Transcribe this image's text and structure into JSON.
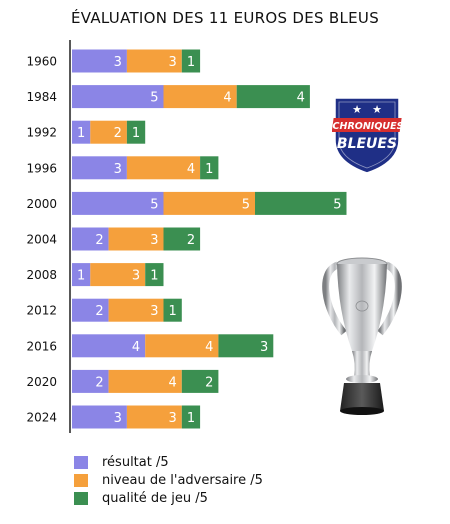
{
  "chart_data": {
    "type": "bar",
    "stacked": true,
    "orientation": "horizontal",
    "title": "ÉVALUATION DES 11 EUROS DES BLEUS",
    "categories": [
      "1960",
      "1984",
      "1992",
      "1996",
      "2000",
      "2004",
      "2008",
      "2012",
      "2016",
      "2020",
      "2024"
    ],
    "series": [
      {
        "name": "résultat /5",
        "color": "#8b85e6",
        "values": [
          3,
          5,
          1,
          3,
          5,
          2,
          1,
          2,
          4,
          2,
          3
        ]
      },
      {
        "name": "niveau de l'adversaire /5",
        "color": "#f5a03c",
        "values": [
          3,
          4,
          2,
          4,
          5,
          3,
          3,
          3,
          4,
          4,
          3
        ]
      },
      {
        "name": "qualité de jeu /5",
        "color": "#3b8f51",
        "values": [
          1,
          4,
          1,
          1,
          5,
          2,
          1,
          1,
          3,
          2,
          1
        ]
      }
    ],
    "xlim": [
      0,
      15
    ],
    "grid": false,
    "legend_position": "bottom-left"
  },
  "logo": {
    "line1": "CHRONIQUES",
    "line2": "BLEUES",
    "navy": "#1f2f86",
    "red": "#d62f2f"
  },
  "trophy_icon": "euro-trophy-icon"
}
